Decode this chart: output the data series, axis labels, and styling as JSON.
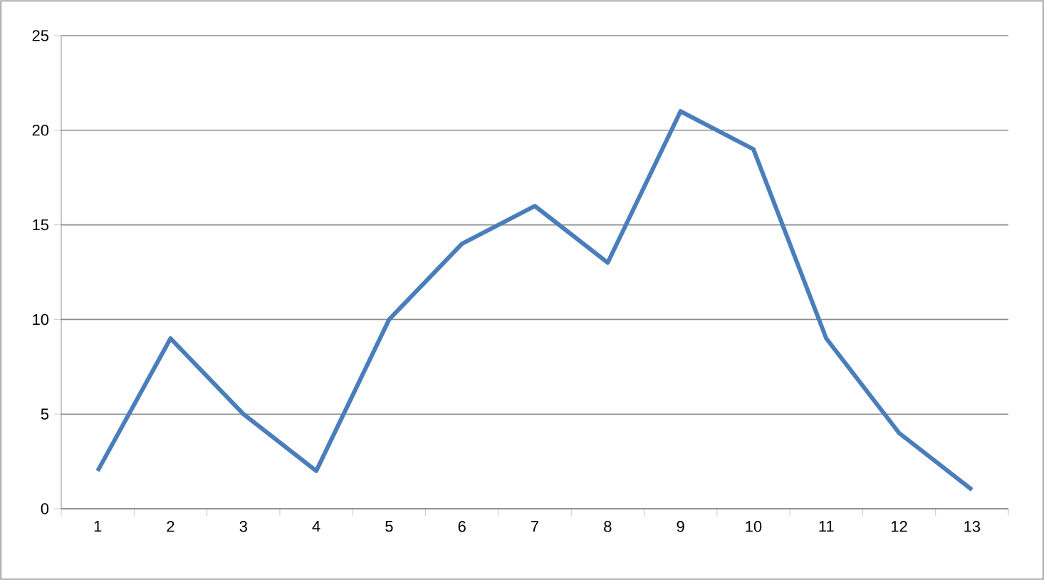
{
  "chart_data": {
    "type": "line",
    "categories": [
      "1",
      "2",
      "3",
      "4",
      "5",
      "6",
      "7",
      "8",
      "9",
      "10",
      "11",
      "12",
      "13"
    ],
    "series": [
      {
        "color": "#4a7ebb",
        "values": [
          2,
          9,
          5,
          2,
          10,
          14,
          16,
          13,
          21,
          19,
          9,
          4,
          1
        ]
      }
    ],
    "ylim": [
      0,
      25
    ],
    "yticks": [
      0,
      5,
      10,
      15,
      20,
      25
    ],
    "grid": "y",
    "marker": "none",
    "line_style": "solid"
  }
}
